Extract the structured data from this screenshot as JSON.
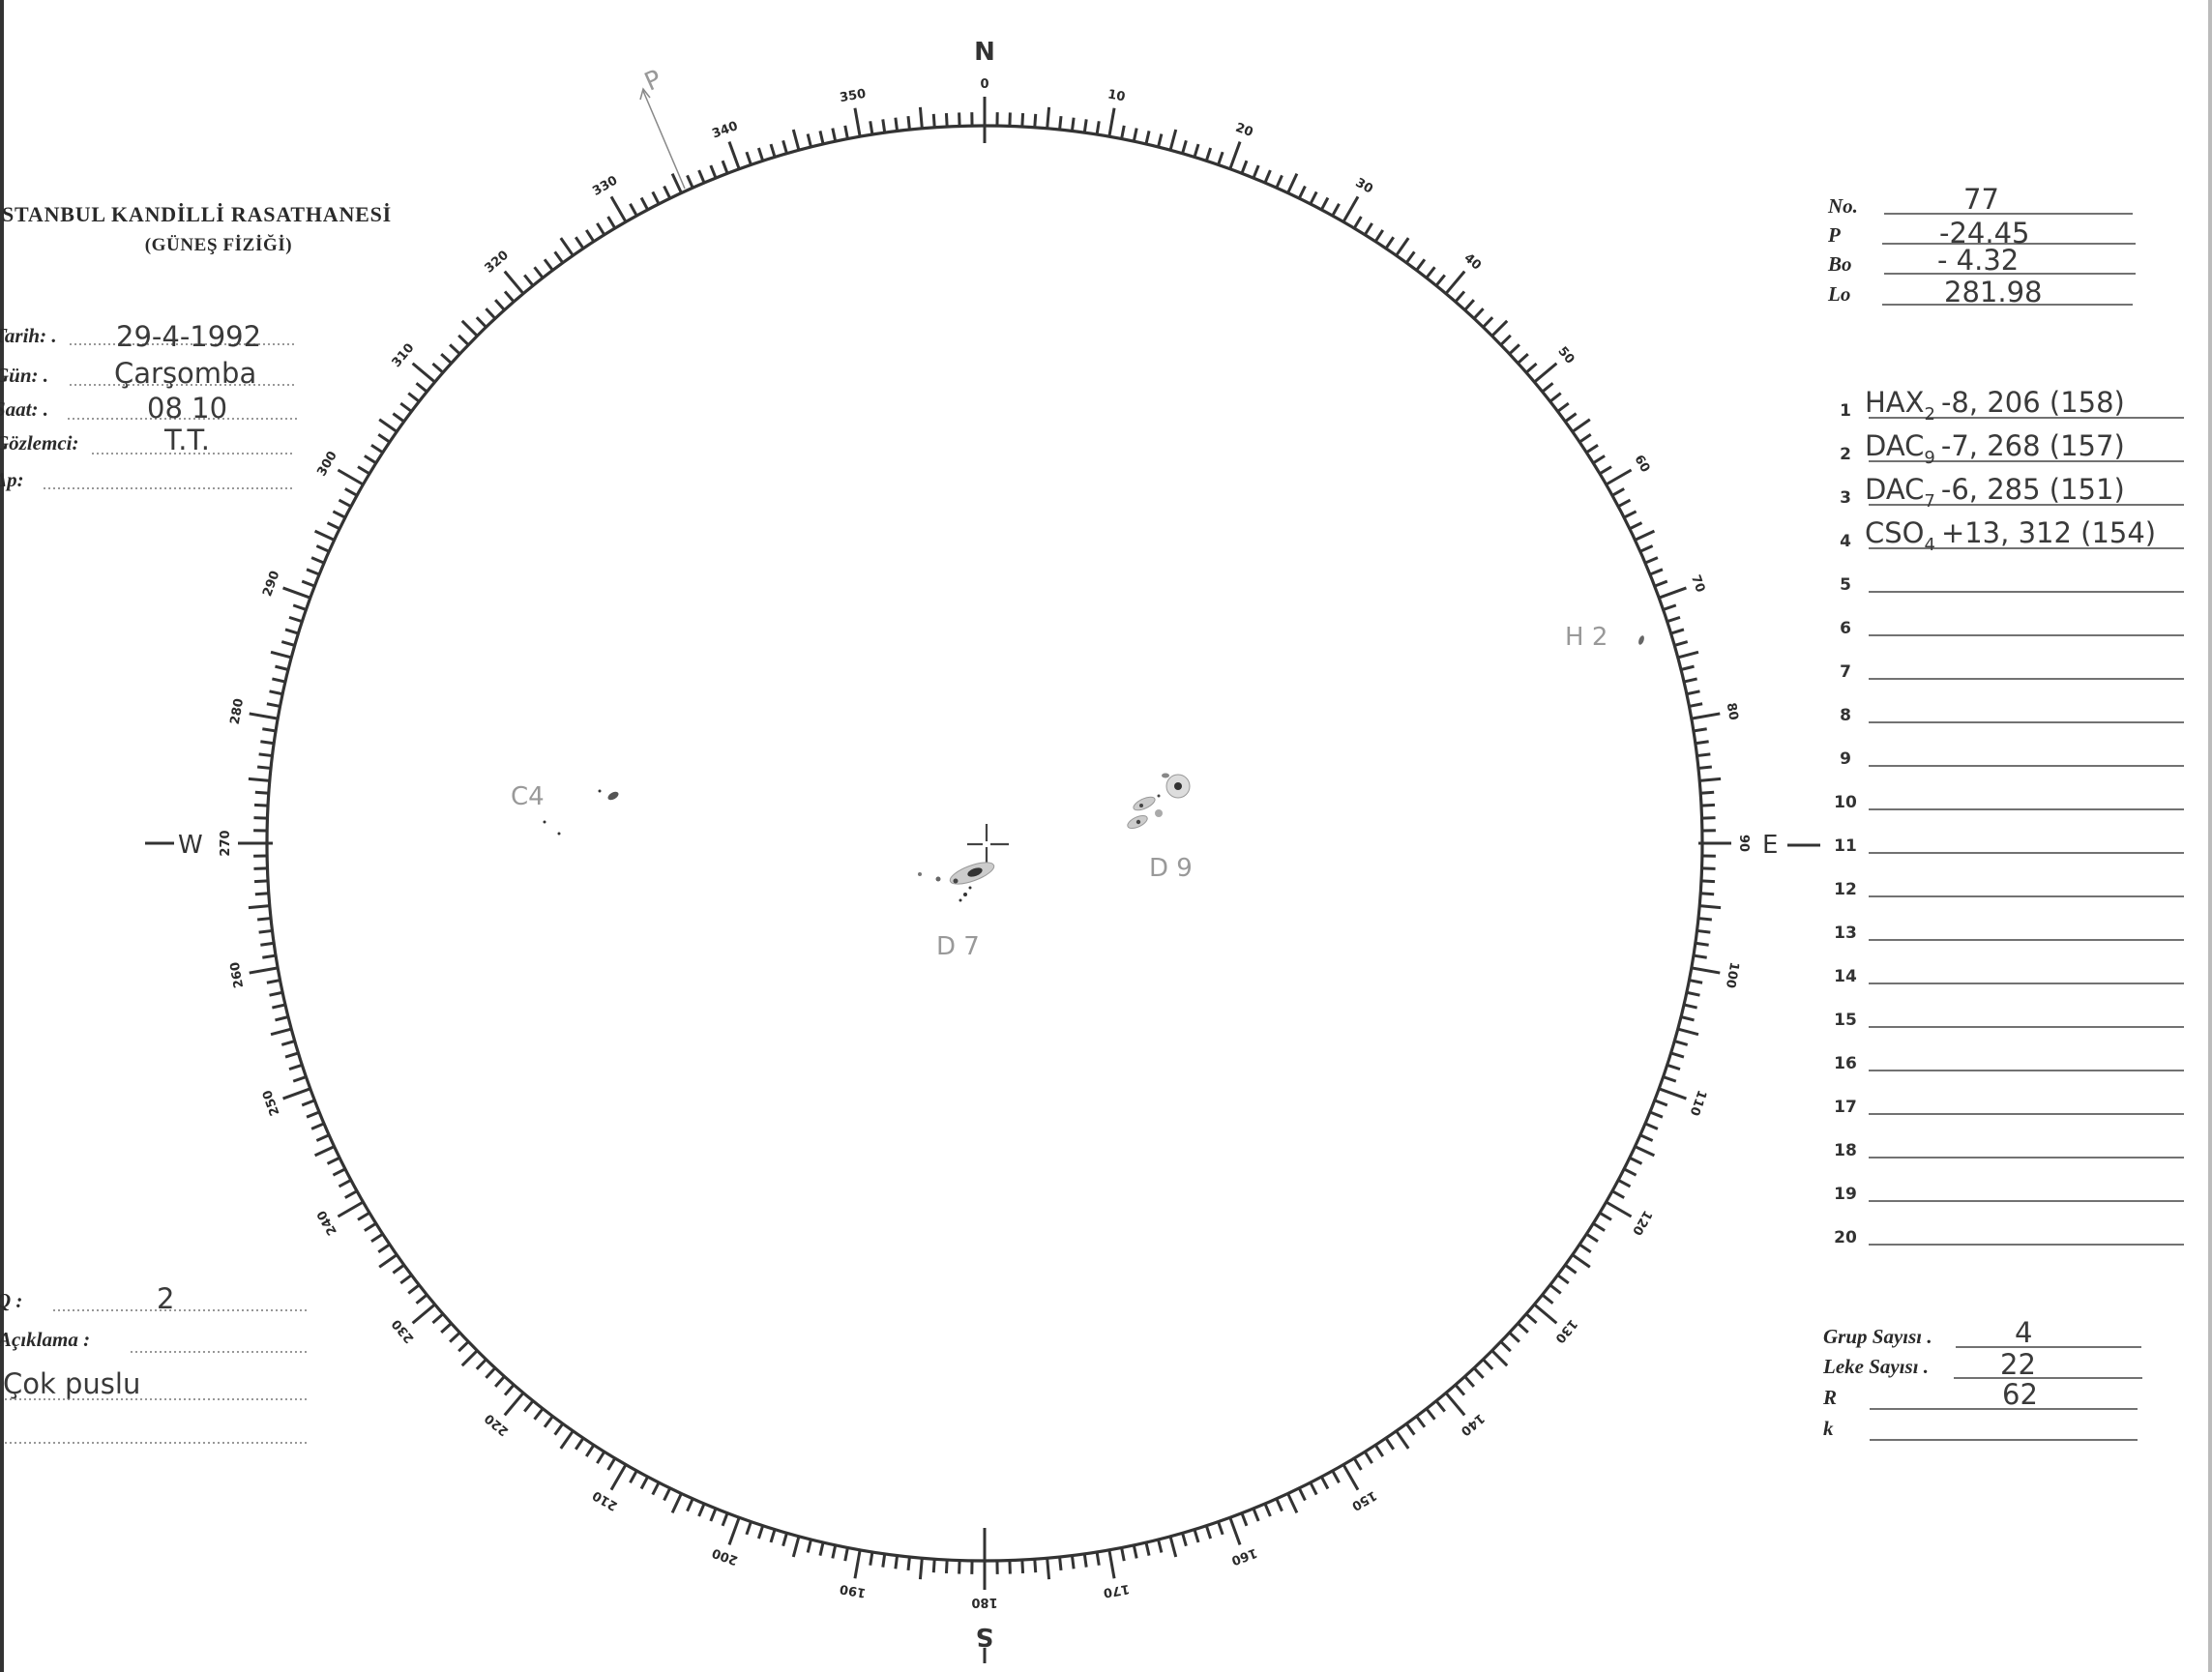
{
  "header": {
    "title": "STANBUL KANDİLLİ RASATHANESİ",
    "subtitle": "(GÜNEŞ FİZİĞİ)"
  },
  "form_left": {
    "tarih_label": "Tarih: .",
    "tarih_value": "29-4-1992",
    "gun_label": "Gün: .",
    "gun_value": "Çarşomba",
    "saat_label": "Saat: .",
    "saat_value": "08 10",
    "gozlemci_label": "Gözlemci:",
    "gozlemci_value": "T.T.",
    "dp_label": "Δp:",
    "dp_value": ""
  },
  "form_bottom_left": {
    "q_label": "Q :",
    "q_value": "2",
    "aciklama_label": "Açıklama :",
    "aciklama_value": "Çok puslu"
  },
  "params": {
    "no_label": "No.",
    "no_value": "77",
    "p_label": "P",
    "p_value": "-24.45",
    "bo_label": "Bo",
    "bo_value": "- 4.32",
    "lo_label": "Lo",
    "lo_value": "281.98"
  },
  "groups_list": [
    {
      "n": "1",
      "code": "HAX",
      "sub": "2",
      "rest": "-8, 206 (158)"
    },
    {
      "n": "2",
      "code": "DAC",
      "sub": "9",
      "rest": "-7, 268 (157)"
    },
    {
      "n": "3",
      "code": "DAC",
      "sub": "7",
      "rest": "-6, 285 (151)"
    },
    {
      "n": "4",
      "code": "CSO",
      "sub": "4",
      "rest": "+13, 312 (154)"
    },
    {
      "n": "5"
    },
    {
      "n": "6"
    },
    {
      "n": "7"
    },
    {
      "n": "8"
    },
    {
      "n": "9"
    },
    {
      "n": "10"
    },
    {
      "n": "11"
    },
    {
      "n": "12"
    },
    {
      "n": "13"
    },
    {
      "n": "14"
    },
    {
      "n": "15"
    },
    {
      "n": "16"
    },
    {
      "n": "17"
    },
    {
      "n": "18"
    },
    {
      "n": "19"
    },
    {
      "n": "20"
    }
  ],
  "totals": {
    "grup_label": "Grup Sayısı .",
    "grup_value": "4",
    "leke_label": "Leke Sayısı .",
    "leke_value": "22",
    "r_label": "R",
    "r_value": "62",
    "k_label": "k",
    "k_value": ""
  },
  "dial": {
    "scale_labels": [
      "0",
      "10",
      "20",
      "30",
      "40",
      "50",
      "60",
      "70",
      "80",
      "90",
      "100",
      "110",
      "120",
      "130",
      "140",
      "150",
      "160",
      "170",
      "180",
      "190",
      "200",
      "210",
      "220",
      "230",
      "240",
      "250",
      "260",
      "270",
      "280",
      "290",
      "300",
      "310",
      "320",
      "330",
      "340",
      "350"
    ],
    "north": "N",
    "south": "S",
    "east": "E",
    "west": "W",
    "p_arrow_label": "P"
  },
  "sunspot_labels": {
    "c4": "C4",
    "d7": "D 7",
    "d9": "D 9",
    "h2": "H 2"
  }
}
